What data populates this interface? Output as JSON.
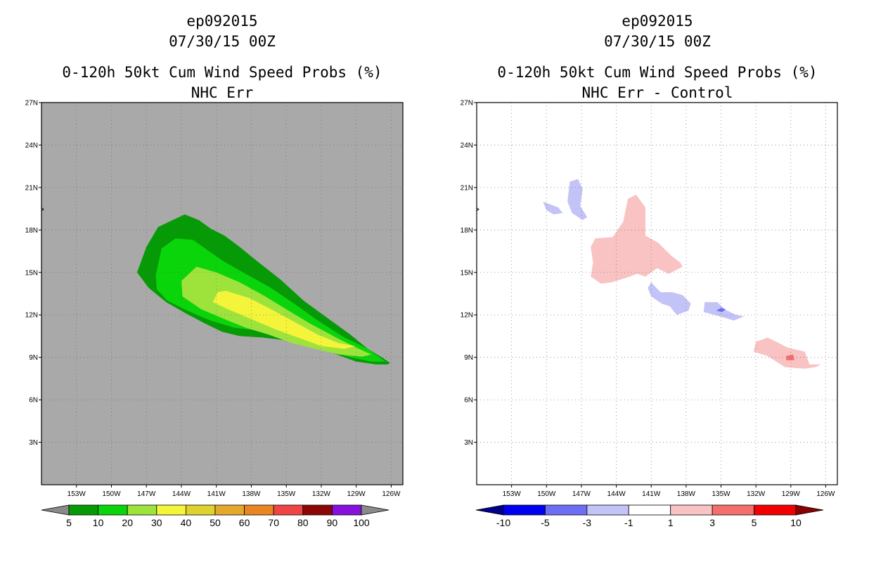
{
  "chart_data": [
    {
      "type": "heatmap",
      "storm_id": "ep092015",
      "datetime": "07/30/15 00Z",
      "title": "0-120h 50kt Cum Wind Speed Probs (%)",
      "subtitle": "NHC Err",
      "units": "%",
      "background_color": "#a9a9a9",
      "xlim": [
        -156,
        -125
      ],
      "ylim": [
        0,
        27
      ],
      "xticks": [
        -153,
        -150,
        -147,
        -144,
        -141,
        -138,
        -135,
        -132,
        -129,
        -126
      ],
      "xtick_labels": [
        "153W",
        "150W",
        "147W",
        "144W",
        "141W",
        "138W",
        "135W",
        "132W",
        "129W",
        "126W"
      ],
      "yticks": [
        3,
        6,
        9,
        12,
        15,
        18,
        21,
        24,
        27
      ],
      "ytick_labels": [
        "3N",
        "6N",
        "9N",
        "12N",
        "15N",
        "18N",
        "21N",
        "24N",
        "27N"
      ],
      "grid": true,
      "colorbar": {
        "bounds": [
          "5",
          "10",
          "20",
          "30",
          "40",
          "50",
          "60",
          "70",
          "80",
          "90",
          "100"
        ],
        "colors": [
          "#8a8a8a",
          "#069a06",
          "#0ad40a",
          "#9de33c",
          "#f4f43a",
          "#e0d22e",
          "#e4a82a",
          "#e98622",
          "#f04545",
          "#8c0606",
          "#8710dc",
          "#8a8a8a"
        ]
      },
      "contours": [
        {
          "level": 5,
          "color": "#069a06",
          "points": [
            [
              -147.8,
              15.0
            ],
            [
              -147.0,
              16.8
            ],
            [
              -146.0,
              18.2
            ],
            [
              -145.0,
              18.6
            ],
            [
              -143.7,
              19.1
            ],
            [
              -142.5,
              18.7
            ],
            [
              -141.5,
              18.1
            ],
            [
              -140.3,
              17.6
            ],
            [
              -139.0,
              16.8
            ],
            [
              -137.5,
              15.8
            ],
            [
              -135.5,
              14.5
            ],
            [
              -133.5,
              13.0
            ],
            [
              -131.5,
              11.8
            ],
            [
              -129.5,
              10.6
            ],
            [
              -128.0,
              9.6
            ],
            [
              -126.8,
              9.0
            ],
            [
              -126.1,
              8.6
            ],
            [
              -126.3,
              8.5
            ],
            [
              -127.3,
              8.5
            ],
            [
              -129.0,
              8.7
            ],
            [
              -131.0,
              9.3
            ],
            [
              -133.0,
              9.8
            ],
            [
              -135.0,
              10.2
            ],
            [
              -137.0,
              10.4
            ],
            [
              -139.0,
              10.5
            ],
            [
              -140.5,
              10.8
            ],
            [
              -142.0,
              11.4
            ],
            [
              -143.6,
              12.1
            ],
            [
              -145.3,
              12.9
            ],
            [
              -146.8,
              13.9
            ]
          ]
        },
        {
          "level": 10,
          "color": "#0ad40a",
          "points": [
            [
              -146.2,
              14.8
            ],
            [
              -145.7,
              16.7
            ],
            [
              -144.5,
              17.4
            ],
            [
              -143.0,
              17.3
            ],
            [
              -141.8,
              16.6
            ],
            [
              -140.4,
              15.8
            ],
            [
              -138.7,
              15.0
            ],
            [
              -136.5,
              14.0
            ],
            [
              -134.5,
              12.9
            ],
            [
              -132.3,
              11.6
            ],
            [
              -130.0,
              10.4
            ],
            [
              -128.0,
              9.6
            ],
            [
              -126.5,
              8.7
            ],
            [
              -127.7,
              8.7
            ],
            [
              -129.5,
              9.0
            ],
            [
              -131.5,
              9.5
            ],
            [
              -133.5,
              10.0
            ],
            [
              -135.5,
              10.5
            ],
            [
              -137.5,
              10.9
            ],
            [
              -139.5,
              11.1
            ],
            [
              -141.5,
              11.6
            ],
            [
              -143.5,
              12.3
            ],
            [
              -145.2,
              13.0
            ],
            [
              -146.1,
              13.8
            ]
          ]
        },
        {
          "level": 20,
          "color": "#9de33c",
          "points": [
            [
              -144.0,
              14.4
            ],
            [
              -142.7,
              15.4
            ],
            [
              -141.0,
              15.0
            ],
            [
              -139.0,
              14.3
            ],
            [
              -137.0,
              13.4
            ],
            [
              -135.0,
              12.4
            ],
            [
              -133.0,
              11.4
            ],
            [
              -130.5,
              10.3
            ],
            [
              -128.5,
              9.5
            ],
            [
              -127.7,
              9.2
            ],
            [
              -128.5,
              9.05
            ],
            [
              -130.5,
              9.2
            ],
            [
              -132.5,
              9.6
            ],
            [
              -134.5,
              10.0
            ],
            [
              -136.5,
              10.6
            ],
            [
              -138.5,
              11.1
            ],
            [
              -140.3,
              11.7
            ],
            [
              -142.3,
              12.4
            ],
            [
              -143.9,
              13.3
            ]
          ]
        },
        {
          "level": 30,
          "color": "#f4f43a",
          "points": [
            [
              -140.9,
              13.6
            ],
            [
              -140.2,
              13.7
            ],
            [
              -138.2,
              13.2
            ],
            [
              -136.3,
              12.4
            ],
            [
              -134.3,
              11.5
            ],
            [
              -132.3,
              10.6
            ],
            [
              -130.5,
              10.0
            ],
            [
              -129.1,
              9.8
            ],
            [
              -130.0,
              9.6
            ],
            [
              -132.0,
              9.8
            ],
            [
              -134.0,
              10.4
            ],
            [
              -136.0,
              11.0
            ],
            [
              -138.0,
              11.7
            ],
            [
              -140.0,
              12.4
            ],
            [
              -141.3,
              12.9
            ]
          ]
        }
      ]
    },
    {
      "type": "heatmap",
      "storm_id": "ep092015",
      "datetime": "07/30/15 00Z",
      "title": "0-120h 50kt Cum Wind Speed Probs (%)",
      "subtitle": "NHC Err - Control",
      "units": "%",
      "background_color": "#ffffff",
      "xlim": [
        -156,
        -125
      ],
      "ylim": [
        0,
        27
      ],
      "xticks": [
        -153,
        -150,
        -147,
        -144,
        -141,
        -138,
        -135,
        -132,
        -129,
        -126
      ],
      "xtick_labels": [
        "153W",
        "150W",
        "147W",
        "144W",
        "141W",
        "138W",
        "135W",
        "132W",
        "129W",
        "126W"
      ],
      "yticks": [
        3,
        6,
        9,
        12,
        15,
        18,
        21,
        24,
        27
      ],
      "ytick_labels": [
        "3N",
        "6N",
        "9N",
        "12N",
        "15N",
        "18N",
        "21N",
        "24N",
        "27N"
      ],
      "grid": true,
      "colorbar": {
        "bounds": [
          "-10",
          "-5",
          "-3",
          "-1",
          "1",
          "3",
          "5",
          "10"
        ],
        "colors": [
          "#00008a",
          "#0000f0",
          "#6e6ef5",
          "#c3c3f7",
          "#ffffff",
          "#f9c3c3",
          "#f56e6e",
          "#f00000",
          "#8a0000"
        ]
      },
      "contours": [
        {
          "level": 1,
          "color": "#f9c3c3",
          "points": [
            [
              -146.2,
              16.8
            ],
            [
              -145.8,
              17.4
            ],
            [
              -144.3,
              17.5
            ],
            [
              -143.4,
              18.6
            ],
            [
              -143.0,
              20.2
            ],
            [
              -142.3,
              20.5
            ],
            [
              -141.5,
              19.6
            ],
            [
              -141.5,
              17.6
            ],
            [
              -140.4,
              17.1
            ],
            [
              -139.3,
              16.2
            ],
            [
              -138.5,
              15.7
            ],
            [
              -138.3,
              15.4
            ],
            [
              -139.5,
              14.9
            ],
            [
              -140.5,
              15.3
            ],
            [
              -141.0,
              15.0
            ],
            [
              -141.5,
              14.7
            ],
            [
              -142.2,
              14.9
            ],
            [
              -143.2,
              14.6
            ],
            [
              -144.4,
              14.3
            ],
            [
              -145.3,
              14.2
            ],
            [
              -146.2,
              14.7
            ],
            [
              -146.0,
              15.7
            ]
          ]
        },
        {
          "level": 1,
          "color": "#f9c3c3",
          "points": [
            [
              -129.3,
              9.7
            ],
            [
              -127.8,
              9.4
            ],
            [
              -127.4,
              8.5
            ],
            [
              -126.4,
              8.5
            ],
            [
              -126.9,
              8.3
            ],
            [
              -127.8,
              8.2
            ],
            [
              -129.5,
              8.3
            ],
            [
              -131.0,
              9.1
            ],
            [
              -132.2,
              9.4
            ],
            [
              -132.0,
              10.1
            ],
            [
              -131.0,
              10.4
            ],
            [
              -130.0,
              10.0
            ]
          ]
        },
        {
          "level": 3,
          "color": "#f56e6e",
          "points": [
            [
              -129.4,
              9.1
            ],
            [
              -128.8,
              9.2
            ],
            [
              -128.7,
              8.8
            ],
            [
              -129.4,
              8.8
            ]
          ]
        },
        {
          "level": -1,
          "color": "#c3c3f7",
          "points": [
            [
              -148.0,
              21.4
            ],
            [
              -147.3,
              21.6
            ],
            [
              -146.9,
              20.9
            ],
            [
              -147.1,
              19.7
            ],
            [
              -146.5,
              18.9
            ],
            [
              -146.9,
              18.7
            ],
            [
              -147.8,
              19.2
            ],
            [
              -148.2,
              20.0
            ]
          ]
        },
        {
          "level": -1,
          "color": "#c3c3f7",
          "points": [
            [
              -150.3,
              20.0
            ],
            [
              -149.0,
              19.6
            ],
            [
              -148.6,
              19.2
            ],
            [
              -149.4,
              19.1
            ],
            [
              -150.0,
              19.4
            ]
          ]
        },
        {
          "level": -1,
          "color": "#c3c3f7",
          "points": [
            [
              -141.0,
              14.3
            ],
            [
              -140.2,
              13.6
            ],
            [
              -139.2,
              13.6
            ],
            [
              -138.3,
              13.4
            ],
            [
              -137.6,
              12.8
            ],
            [
              -137.8,
              12.3
            ],
            [
              -138.8,
              12.0
            ],
            [
              -139.4,
              12.6
            ],
            [
              -140.1,
              12.8
            ],
            [
              -141.0,
              13.3
            ],
            [
              -141.3,
              13.9
            ]
          ]
        },
        {
          "level": -1,
          "color": "#c3c3f7",
          "points": [
            [
              -136.4,
              12.9
            ],
            [
              -135.3,
              12.9
            ],
            [
              -134.7,
              12.4
            ],
            [
              -133.7,
              12.0
            ],
            [
              -133.0,
              11.9
            ],
            [
              -133.9,
              11.6
            ],
            [
              -135.1,
              11.9
            ],
            [
              -136.5,
              12.2
            ]
          ]
        },
        {
          "level": -3,
          "color": "#6e6ef5",
          "points": [
            [
              -135.0,
              12.5
            ],
            [
              -134.6,
              12.4
            ],
            [
              -134.9,
              12.2
            ],
            [
              -135.4,
              12.3
            ]
          ]
        }
      ]
    }
  ]
}
